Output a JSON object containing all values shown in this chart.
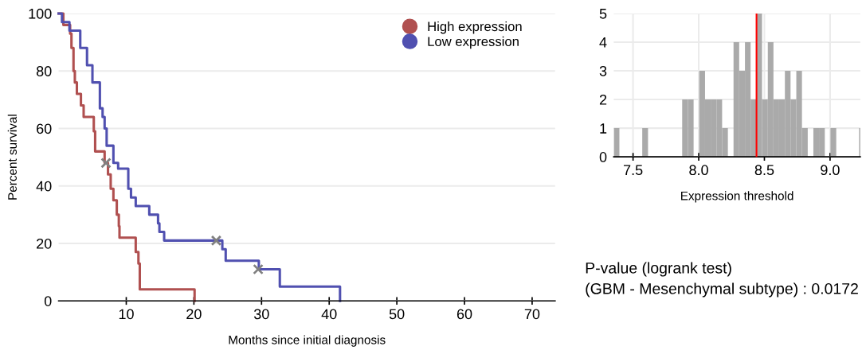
{
  "chart_data": [
    {
      "type": "step",
      "xlabel": "Months since initial diagnosis",
      "ylabel": "Percent survival",
      "xlim": [
        0,
        73.4
      ],
      "xticks": [
        10,
        20,
        30,
        40,
        50,
        60,
        70
      ],
      "ylim": [
        0,
        100
      ],
      "yticks": [
        0,
        20,
        40,
        60,
        80,
        100
      ],
      "grid": "y",
      "legend": "top right",
      "series": [
        {
          "name": "High expression",
          "color": "#b05050",
          "x": [
            0,
            0.7,
            1.7,
            1.9,
            2.2,
            2.4,
            2.7,
            3.3,
            3.7,
            5.2,
            5.4,
            6.8,
            7.3,
            7.7,
            8.1,
            8.6,
            8.9,
            9.0,
            11.4,
            11.8,
            12.0,
            20.1
          ],
          "values": [
            100,
            96,
            93,
            88,
            80,
            76,
            72,
            68,
            64,
            59,
            52,
            48,
            44,
            39,
            35,
            30,
            26,
            22,
            17,
            13,
            4,
            0
          ]
        },
        {
          "name": "Low expression",
          "color": "#5050b0",
          "x": [
            0,
            0.5,
            1.6,
            3.2,
            4.2,
            5.0,
            6.1,
            6.5,
            6.8,
            7.1,
            8.1,
            8.8,
            10.3,
            10.7,
            11.4,
            13.4,
            14.7,
            14.9,
            15.6,
            24.2,
            24.7,
            29.6,
            32.7,
            41.6
          ],
          "values": [
            100,
            97,
            94,
            88,
            82,
            76,
            67,
            64,
            60,
            54,
            48,
            46,
            39,
            36,
            33,
            30,
            27,
            24,
            21,
            18,
            14,
            11,
            5,
            0
          ]
        },
        {
          "type": "scatter",
          "marker": "cross",
          "color": "#808080",
          "x": [
            7.0,
            23.3,
            29.5
          ],
          "values": [
            48,
            21,
            11
          ]
        }
      ],
      "annotations": [
        "P-value (logrank test)",
        "(GBM - Mesenchymal subtype) : 0.0172"
      ]
    },
    {
      "type": "histogram",
      "xlabel": "Expression threshold",
      "color": "#aaaaaa",
      "bins": [
        7.353,
        7.396,
        7.44,
        7.483,
        7.527,
        7.57,
        7.614,
        7.657,
        7.7,
        7.744,
        7.787,
        7.831,
        7.874,
        7.918,
        7.961,
        8.004,
        8.048,
        8.091,
        8.135,
        8.178,
        8.222,
        8.265,
        8.308,
        8.352,
        8.395,
        8.439,
        8.482,
        8.526,
        8.569,
        8.612,
        8.656,
        8.699,
        8.743,
        8.786,
        8.83,
        8.873,
        8.916,
        8.96,
        9.003,
        9.047,
        9.09,
        9.134,
        9.177,
        9.221,
        9.264
      ],
      "values": [
        1,
        0,
        0,
        0,
        0,
        1,
        0,
        0,
        0,
        0,
        0,
        0,
        2,
        2,
        0,
        3,
        2,
        2,
        2,
        1,
        0,
        4,
        3,
        4,
        2,
        5,
        2,
        4,
        2,
        2,
        3,
        2,
        3,
        1,
        0,
        1,
        1,
        0,
        1,
        0,
        0,
        0,
        0,
        1
      ],
      "xlim": [
        7.353,
        9.23
      ],
      "xticks": [
        {
          "value": 7.5,
          "label": "7.5"
        },
        {
          "value": 8.0,
          "label": "8.0"
        },
        {
          "value": 8.5,
          "label": "8.5"
        },
        {
          "value": 9.0,
          "label": "9.0"
        }
      ],
      "ylim": [
        0,
        5
      ],
      "yticks": [
        0,
        1,
        2,
        3,
        4,
        5
      ],
      "grid": true,
      "ref_lines": [
        {
          "axis": "x",
          "value": 8.44,
          "color": "#ff0000"
        }
      ]
    }
  ]
}
